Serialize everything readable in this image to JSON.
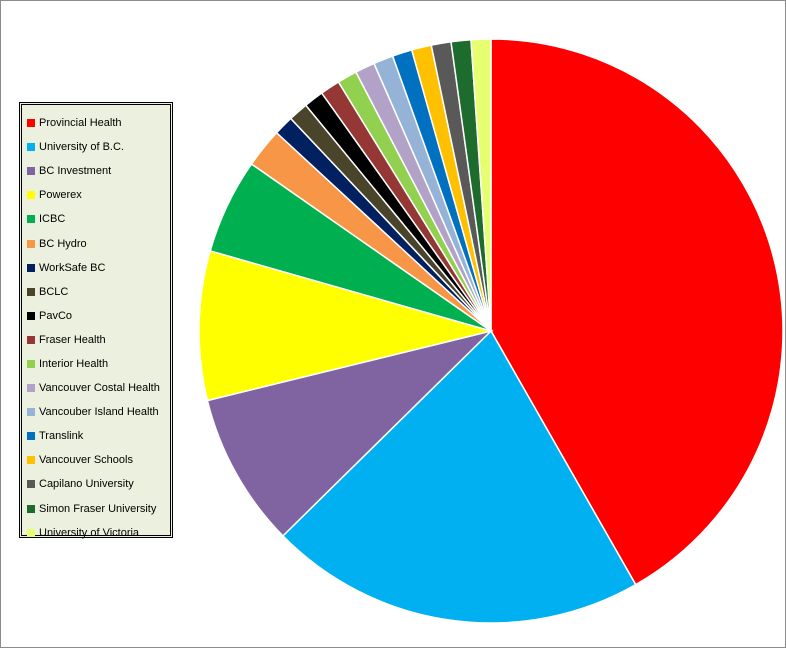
{
  "chart_data": {
    "type": "pie",
    "title": "",
    "legend_position": "left",
    "slices": [
      {
        "label": "Provincial Health",
        "value": 42.0,
        "color": "#ff0000"
      },
      {
        "label": "University of B.C.",
        "value": 21.0,
        "color": "#00b0f0"
      },
      {
        "label": "BC Investment",
        "value": 8.6,
        "color": "#8064a2"
      },
      {
        "label": "Powerex",
        "value": 8.3,
        "color": "#ffff00"
      },
      {
        "label": "ICBC",
        "value": 5.3,
        "color": "#00b050"
      },
      {
        "label": "BC Hydro",
        "value": 2.2,
        "color": "#f79646"
      },
      {
        "label": "WorkSafe BC",
        "value": 1.1,
        "color": "#002060"
      },
      {
        "label": "BCLC",
        "value": 1.1,
        "color": "#4a452a"
      },
      {
        "label": "PavCo",
        "value": 1.1,
        "color": "#000000"
      },
      {
        "label": "Fraser Health",
        "value": 1.1,
        "color": "#953735"
      },
      {
        "label": "Interior Health",
        "value": 1.1,
        "color": "#92d050"
      },
      {
        "label": "Vancouver Costal Health",
        "value": 1.1,
        "color": "#b3a2c7"
      },
      {
        "label": "Vancouber Island Health",
        "value": 1.1,
        "color": "#95b3d7"
      },
      {
        "label": "Translink",
        "value": 1.1,
        "color": "#0070c0"
      },
      {
        "label": "Vancouver Schools",
        "value": 1.1,
        "color": "#ffc000"
      },
      {
        "label": "Capilano University",
        "value": 1.1,
        "color": "#595959"
      },
      {
        "label": "Simon Fraser University",
        "value": 1.1,
        "color": "#1e6b2e"
      },
      {
        "label": "University of Victoria",
        "value": 1.1,
        "color": "#e6ff70"
      }
    ]
  }
}
